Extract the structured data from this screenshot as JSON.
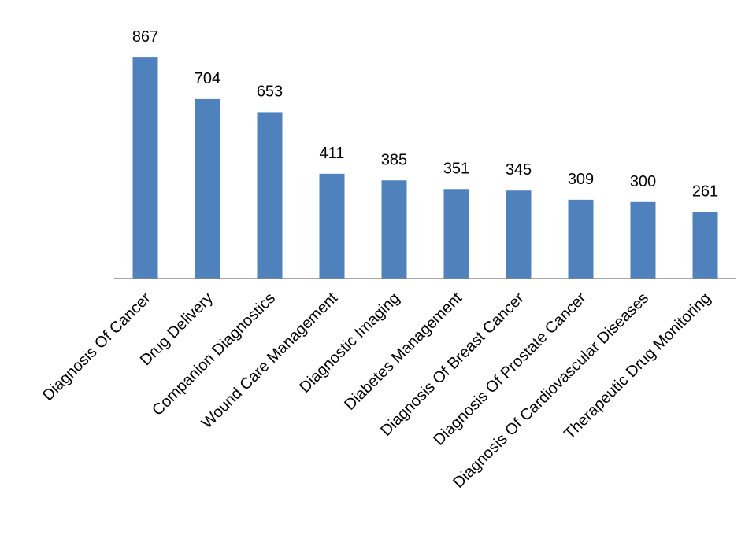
{
  "chart_data": {
    "type": "bar",
    "categories": [
      "Diagnosis Of Cancer",
      "Drug Delivery",
      "Companion Diagnostics",
      "Wound Care Management",
      "Diagnostic Imaging",
      "Diabetes Management",
      "Diagnosis Of Breast Cancer",
      "Diagnosis Of Prostate Cancer",
      "Diagnosis Of Cardiovascular Diseases",
      "Therapeutic Drug Monitoring"
    ],
    "values": [
      867,
      704,
      653,
      411,
      385,
      351,
      345,
      309,
      300,
      261
    ],
    "color": "#4f81bd",
    "ylim": [
      0,
      1000
    ]
  }
}
